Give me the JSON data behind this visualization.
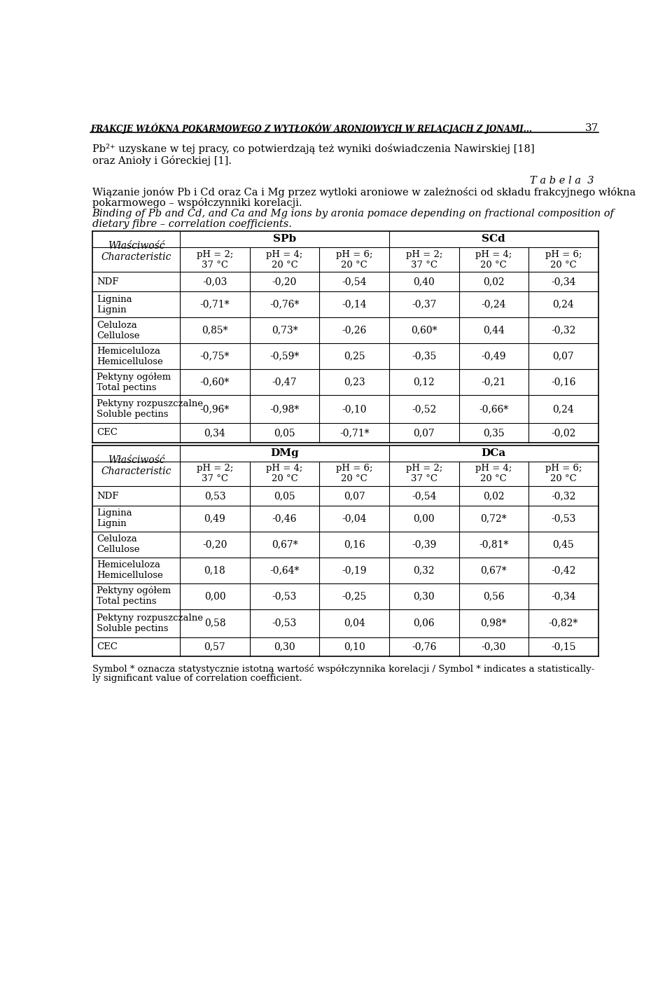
{
  "page_header": "FRAKCJE WŁÓKNA POKARMOWEGO Z WYTŁOKÓW ARONIOWYCH W RELACJACH Z JONAMI...",
  "page_number": "37",
  "intro_line1": "Pb²⁺ uzyskane w tej pracy, co potwierdzają też wyniki doświadczenia Nawirskiej [18]",
  "intro_line2": "oraz Anioły i Góreckiej [1].",
  "table_label": "T a b e l a  3",
  "caption_pl1": "Wiązanie jonów Pb i Cd oraz Ca i Mg przez wytloki aroniowe w zależności od składu frakcyjnego włókna",
  "caption_pl2": "pokarmowego – współczynniki korelacji.",
  "caption_en1": "Binding of Pb and Cd, and Ca and Mg ions by aronia pomace depending on fractional composition of",
  "caption_en2": "dietary fibre – correlation coefficients.",
  "sec1": "SPb",
  "sec2": "SCd",
  "sec3": "DMg",
  "sec4": "DCa",
  "prop_label": "Właściwość\nCharacteristic",
  "col_subs": [
    "pH = 2;\n37 °C",
    "pH = 4;\n20 °C",
    "pH = 6;\n20 °C",
    "pH = 2;\n37 °C",
    "pH = 4;\n20 °C",
    "pH = 6;\n20 °C"
  ],
  "row_labels": [
    "NDF",
    "Lignina\nLignin",
    "Celuloza\nCellulose",
    "Hemiceluloza\nHemicellulose",
    "Pektyny ogółem\nTotal pectins",
    "Pektyny rozpuszczalne\nSoluble pectins",
    "CEC"
  ],
  "t1": [
    [
      "-0,03",
      "-0,20",
      "-0,54",
      "0,40",
      "0,02",
      "-0,34"
    ],
    [
      "-0,71*",
      "-0,76*",
      "-0,14",
      "-0,37",
      "-0,24",
      "0,24"
    ],
    [
      "0,85*",
      "0,73*",
      "-0,26",
      "0,60*",
      "0,44",
      "-0,32"
    ],
    [
      "-0,75*",
      "-0,59*",
      "0,25",
      "-0,35",
      "-0,49",
      "0,07"
    ],
    [
      "-0,60*",
      "-0,47",
      "0,23",
      "0,12",
      "-0,21",
      "-0,16"
    ],
    [
      "-0,96*",
      "-0,98*",
      "-0,10",
      "-0,52",
      "-0,66*",
      "0,24"
    ],
    [
      "0,34",
      "0,05",
      "-0,71*",
      "0,07",
      "0,35",
      "-0,02"
    ]
  ],
  "t2": [
    [
      "0,53",
      "0,05",
      "0,07",
      "-0,54",
      "0,02",
      "-0,32"
    ],
    [
      "0,49",
      "-0,46",
      "-0,04",
      "0,00",
      "0,72*",
      "-0,53"
    ],
    [
      "-0,20",
      "0,67*",
      "0,16",
      "-0,39",
      "-0,81*",
      "0,45"
    ],
    [
      "0,18",
      "-0,64*",
      "-0,19",
      "0,32",
      "0,67*",
      "-0,42"
    ],
    [
      "0,00",
      "-0,53",
      "-0,25",
      "0,30",
      "0,56",
      "-0,34"
    ],
    [
      "0,58",
      "-0,53",
      "0,04",
      "0,06",
      "0,98*",
      "-0,82*"
    ],
    [
      "0,57",
      "0,30",
      "0,10",
      "-0,76",
      "-0,30",
      "-0,15"
    ]
  ],
  "footnote_line1": "Symbol * oznacza statystycznie istotną wartość współczynnika korelacji / Symbol * indicates a statistically-",
  "footnote_line2": "ly significant value of correlation coefficient."
}
